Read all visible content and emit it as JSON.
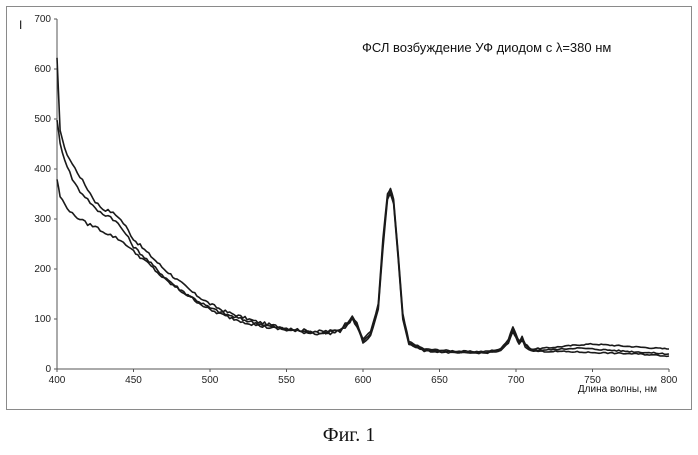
{
  "caption": "Фиг. 1",
  "chart_data": {
    "type": "line",
    "title": "ФСЛ возбуждение  УФ диодом  с λ=380 нм",
    "xlabel": "Длина волны, нм",
    "ylabel": "I",
    "xlim": [
      400,
      800
    ],
    "ylim": [
      0,
      700
    ],
    "xticks": [
      400,
      450,
      500,
      550,
      600,
      650,
      700,
      750,
      800
    ],
    "yticks": [
      0,
      100,
      200,
      300,
      400,
      500,
      600,
      700
    ],
    "xtick_labels": [
      "400",
      "450",
      "500",
      "550",
      "600",
      "650",
      "700",
      "750",
      "800"
    ],
    "ytick_labels": [
      "0",
      "100",
      "200",
      "300",
      "400",
      "500",
      "600",
      "700"
    ],
    "grid": false,
    "line_color": "#1a1a1a",
    "series": [
      {
        "x": [
          400,
          402,
          405,
          410,
          415,
          420,
          425,
          430,
          435,
          440,
          445,
          450,
          460,
          470,
          480,
          490,
          500,
          510,
          520,
          530,
          540,
          550,
          560,
          570,
          580,
          585,
          590,
          593,
          596,
          600,
          605,
          610,
          613,
          616,
          618,
          620,
          623,
          626,
          630,
          640,
          650,
          660,
          670,
          680,
          690,
          695,
          698,
          700,
          702,
          704,
          706,
          710,
          720,
          730,
          740,
          750,
          760,
          770,
          780,
          790,
          800
        ],
        "values": [
          620,
          480,
          440,
          410,
          385,
          360,
          335,
          320,
          315,
          305,
          285,
          260,
          230,
          200,
          175,
          150,
          130,
          115,
          105,
          95,
          88,
          82,
          78,
          75,
          76,
          80,
          95,
          108,
          90,
          60,
          75,
          130,
          260,
          350,
          360,
          340,
          230,
          110,
          55,
          40,
          38,
          36,
          35,
          35,
          40,
          60,
          85,
          70,
          55,
          65,
          50,
          40,
          42,
          45,
          48,
          50,
          48,
          46,
          44,
          42,
          40
        ]
      },
      {
        "x": [
          400,
          402,
          405,
          410,
          415,
          420,
          425,
          430,
          435,
          440,
          445,
          450,
          460,
          470,
          480,
          490,
          500,
          510,
          520,
          530,
          540,
          550,
          560,
          570,
          580,
          585,
          590,
          593,
          596,
          600,
          605,
          610,
          613,
          616,
          618,
          620,
          623,
          626,
          630,
          640,
          650,
          660,
          670,
          680,
          690,
          695,
          698,
          700,
          702,
          704,
          706,
          710,
          720,
          730,
          740,
          750,
          760,
          770,
          780,
          790,
          800
        ],
        "values": [
          500,
          450,
          420,
          380,
          355,
          340,
          320,
          310,
          305,
          290,
          270,
          245,
          215,
          185,
          160,
          140,
          122,
          110,
          100,
          92,
          85,
          80,
          76,
          73,
          74,
          78,
          92,
          102,
          88,
          55,
          70,
          125,
          250,
          345,
          355,
          335,
          225,
          105,
          52,
          38,
          36,
          34,
          33,
          33,
          38,
          55,
          78,
          66,
          52,
          60,
          48,
          38,
          38,
          40,
          42,
          40,
          38,
          36,
          34,
          32,
          30
        ]
      },
      {
        "x": [
          400,
          402,
          405,
          410,
          415,
          420,
          425,
          430,
          435,
          440,
          445,
          450,
          460,
          470,
          480,
          490,
          500,
          510,
          520,
          530,
          540,
          550,
          560,
          570,
          580,
          585,
          590,
          593,
          596,
          600,
          605,
          610,
          613,
          616,
          618,
          620,
          623,
          626,
          630,
          640,
          650,
          660,
          670,
          680,
          690,
          695,
          698,
          700,
          702,
          704,
          706,
          710,
          720,
          730,
          740,
          750,
          760,
          770,
          780,
          790,
          800
        ],
        "values": [
          380,
          345,
          330,
          310,
          300,
          290,
          285,
          275,
          268,
          260,
          250,
          235,
          210,
          180,
          158,
          138,
          118,
          106,
          96,
          88,
          82,
          78,
          74,
          71,
          72,
          76,
          88,
          100,
          85,
          52,
          66,
          120,
          240,
          340,
          350,
          330,
          220,
          100,
          50,
          36,
          34,
          32,
          32,
          32,
          36,
          52,
          74,
          62,
          50,
          58,
          45,
          36,
          35,
          35,
          34,
          33,
          32,
          31,
          30,
          28,
          26
        ]
      }
    ]
  }
}
